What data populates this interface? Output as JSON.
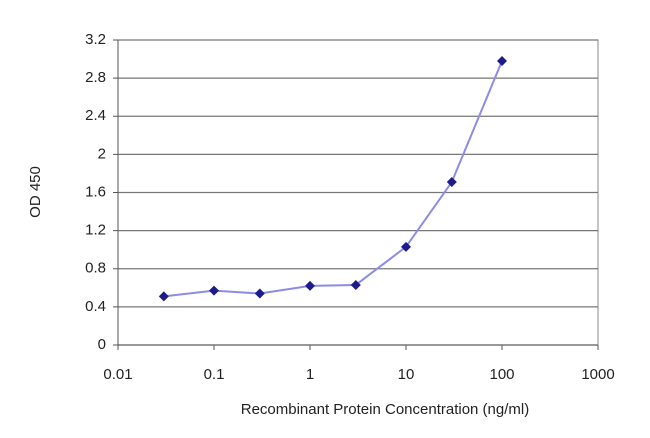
{
  "chart_data": {
    "type": "line",
    "xlabel": "Recombinant Protein Concentration (ng/ml)",
    "ylabel": "OD 450",
    "x": [
      0.03,
      0.1,
      0.3,
      1,
      3,
      10,
      30,
      100
    ],
    "values": [
      0.51,
      0.57,
      0.54,
      0.62,
      0.63,
      1.03,
      1.71,
      2.98
    ],
    "color": "#8c8ce6",
    "marker_color": "#1c1c8a",
    "xscale": "log",
    "xlim": [
      0.01,
      1000
    ],
    "xticks": [
      0.01,
      0.1,
      1,
      10,
      100,
      1000
    ],
    "ylim": [
      0,
      3.2
    ],
    "yticks": [
      0,
      0.4,
      0.8,
      1.2,
      1.6,
      2,
      2.4,
      2.8,
      3.2
    ],
    "grid": true
  }
}
